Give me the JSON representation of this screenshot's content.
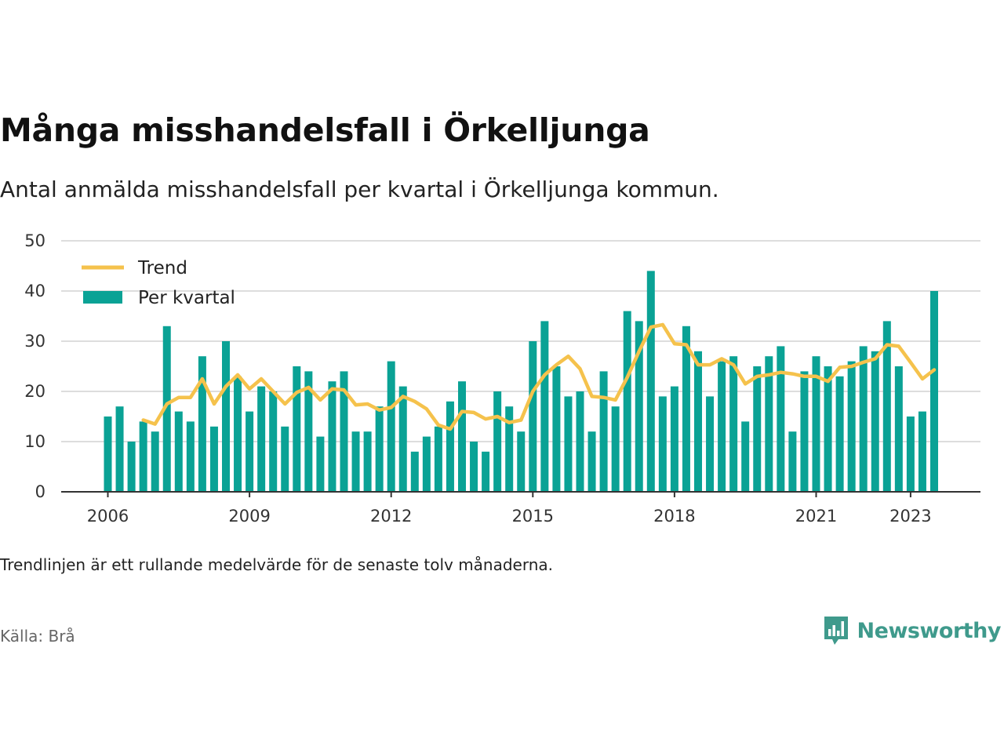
{
  "header": {
    "title": "Många misshandelsfall i Örkelljunga",
    "subtitle": "Antal anmälda misshandelsfall per kvartal i Örkelljunga kommun."
  },
  "footer": {
    "note": "Trendlinjen är ett rullande medelvärde för de senaste tolv månaderna.",
    "source": "Källa: Brå",
    "brand": "Newsworthy"
  },
  "colors": {
    "bar": "#0aa295",
    "trend": "#f5c24c",
    "grid": "#dddddd",
    "axis": "#333333",
    "brand": "#3f9a8c"
  },
  "chart_data": {
    "type": "bar",
    "x_start": "2006 Q1",
    "x_ticks": [
      "2006",
      "2009",
      "2012",
      "2015",
      "2018",
      "2021",
      "2023"
    ],
    "y_ticks": [
      0,
      10,
      20,
      30,
      40,
      50
    ],
    "ylim": [
      0,
      50
    ],
    "grid": true,
    "legend_position": "top-left",
    "series": [
      {
        "name": "Per kvartal",
        "kind": "bar",
        "values": [
          15,
          17,
          10,
          14,
          12,
          33,
          16,
          14,
          27,
          13,
          30,
          23,
          16,
          21,
          20,
          13,
          25,
          24,
          11,
          22,
          24,
          12,
          12,
          17,
          26,
          21,
          8,
          11,
          13,
          18,
          22,
          10,
          8,
          20,
          17,
          12,
          30,
          34,
          25,
          19,
          20,
          12,
          24,
          17,
          36,
          34,
          44,
          19,
          21,
          33,
          28,
          19,
          26,
          27,
          14,
          25,
          27,
          29,
          12,
          24,
          27,
          25,
          23,
          26,
          29,
          28,
          34,
          25,
          15,
          16,
          40
        ]
      },
      {
        "name": "Trend",
        "kind": "line",
        "values": [
          null,
          null,
          null,
          14.3,
          13.5,
          17.5,
          18.8,
          18.8,
          22.5,
          17.5,
          21.0,
          23.3,
          20.5,
          22.5,
          20.0,
          17.5,
          19.8,
          20.8,
          18.3,
          20.5,
          20.3,
          17.3,
          17.5,
          16.3,
          16.8,
          19.0,
          18.0,
          16.5,
          13.3,
          12.5,
          16.0,
          15.8,
          14.5,
          15.0,
          13.8,
          14.3,
          20.0,
          23.3,
          25.3,
          27.0,
          24.5,
          19.0,
          18.8,
          18.3,
          22.8,
          28.0,
          32.8,
          33.3,
          29.5,
          29.3,
          25.3,
          25.3,
          26.5,
          25.3,
          21.5,
          23.0,
          23.3,
          23.8,
          23.5,
          23.0,
          23.0,
          22.0,
          24.8,
          25.0,
          25.8,
          26.5,
          29.3,
          29.0,
          25.8,
          22.5,
          24.3
        ]
      }
    ]
  }
}
